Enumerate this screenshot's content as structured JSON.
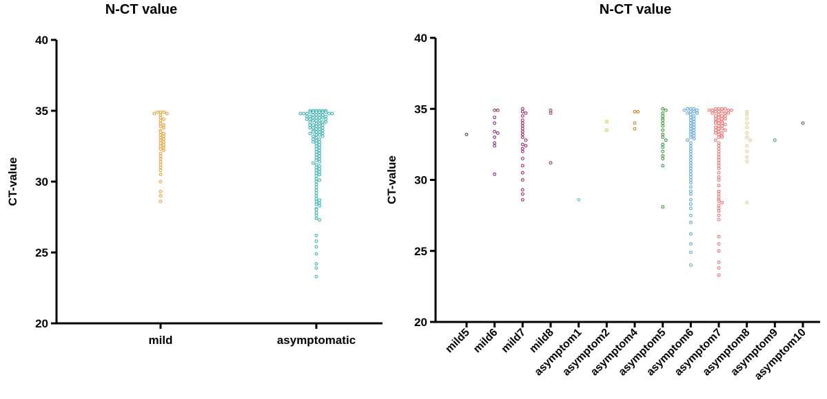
{
  "chart_data": [
    {
      "type": "swarm",
      "title": "N-CT value",
      "ylabel": "CT-value",
      "categories": [
        "mild",
        "asymptomatic"
      ],
      "colors": [
        "#e8a33a",
        "#3fb3b3"
      ],
      "values": [
        [
          34.9,
          34.9,
          34.9,
          34.8,
          34.8,
          34.7,
          34.5,
          34.4,
          34.3,
          34.1,
          34.0,
          33.9,
          33.8,
          33.6,
          33.5,
          33.4,
          33.3,
          33.2,
          33.1,
          33.0,
          32.9,
          32.8,
          32.7,
          32.6,
          32.5,
          32.4,
          32.3,
          32.2,
          32.0,
          31.8,
          31.6,
          31.4,
          31.2,
          31.0,
          30.8,
          30.5,
          30.0,
          29.3,
          29.0,
          28.6
        ],
        [
          35.0,
          35.0,
          35.0,
          35.0,
          35.0,
          35.0,
          34.9,
          34.9,
          34.9,
          34.9,
          34.9,
          34.9,
          34.8,
          34.8,
          34.8,
          34.8,
          34.8,
          34.7,
          34.7,
          34.7,
          34.7,
          34.6,
          34.6,
          34.6,
          34.5,
          34.5,
          34.5,
          34.5,
          34.4,
          34.4,
          34.4,
          34.3,
          34.3,
          34.3,
          34.2,
          34.2,
          34.2,
          34.1,
          34.1,
          34.0,
          34.0,
          34.0,
          33.9,
          33.9,
          33.8,
          33.8,
          33.8,
          33.7,
          33.7,
          33.6,
          33.6,
          33.5,
          33.5,
          33.5,
          33.4,
          33.4,
          33.3,
          33.3,
          33.2,
          33.2,
          33.1,
          33.0,
          33.0,
          32.9,
          32.8,
          32.8,
          32.7,
          32.6,
          32.5,
          32.4,
          32.3,
          32.2,
          32.1,
          32.0,
          31.9,
          31.8,
          31.7,
          31.6,
          31.5,
          31.4,
          31.3,
          31.2,
          31.1,
          31.0,
          30.9,
          30.8,
          30.7,
          30.6,
          30.5,
          30.4,
          30.2,
          30.1,
          30.0,
          29.8,
          29.6,
          29.4,
          29.2,
          29.0,
          28.8,
          28.7,
          28.6,
          28.5,
          28.4,
          28.3,
          28.1,
          28.0,
          27.8,
          27.6,
          27.4,
          27.3,
          26.2,
          25.8,
          25.4,
          24.9,
          24.2,
          23.9,
          23.3
        ]
      ],
      "ylim": [
        20,
        40
      ],
      "yticks": [
        20,
        25,
        30,
        35,
        40
      ]
    },
    {
      "type": "swarm",
      "title": "N-CT value",
      "ylabel": "CT-value",
      "categories": [
        "mild5",
        "mild6",
        "mild7",
        "mild8",
        "asymptom1",
        "asymptom2",
        "asymptom4",
        "asymptom5",
        "asymptom6",
        "asymptom7",
        "asymptom8",
        "asymptom9",
        "asymptom10"
      ],
      "colors": [
        "#4a3c70",
        "#8b2d7a",
        "#9b2a6e",
        "#a03070",
        "#5bc0c8",
        "#d8c840",
        "#c0803a",
        "#3a9a3a",
        "#5fa8e0",
        "#f07070",
        "#e8c890",
        "#3aa890",
        "#505a80"
      ],
      "values": [
        [
          33.2
        ],
        [
          34.9,
          34.9,
          34.4,
          34.0,
          33.4,
          33.3,
          33.0,
          32.6,
          32.4,
          30.4
        ],
        [
          35.0,
          34.8,
          34.7,
          34.5,
          34.2,
          34.0,
          33.8,
          33.6,
          33.4,
          33.2,
          33.0,
          32.8,
          32.5,
          32.4,
          32.2,
          32.0,
          31.5,
          31.0,
          30.5,
          30.0,
          29.3,
          29.0,
          28.6
        ],
        [
          34.9,
          34.7,
          31.2
        ],
        [
          28.6
        ],
        [
          34.1,
          33.5
        ],
        [
          34.8,
          34.8,
          34.0,
          33.6
        ],
        [
          35.0,
          34.9,
          34.7,
          34.5,
          34.3,
          34.2,
          34.0,
          33.8,
          33.5,
          33.2,
          33.0,
          32.8,
          32.5,
          32.3,
          32.0,
          31.7,
          31.5,
          31.0,
          28.1
        ],
        [
          35.0,
          35.0,
          35.0,
          34.9,
          34.9,
          34.8,
          34.8,
          34.7,
          34.7,
          34.6,
          34.5,
          34.4,
          34.3,
          34.2,
          34.1,
          34.0,
          33.9,
          33.8,
          33.7,
          33.6,
          33.5,
          33.4,
          33.3,
          33.2,
          33.1,
          33.0,
          32.9,
          32.8,
          32.6,
          32.4,
          32.2,
          32.0,
          31.8,
          31.6,
          31.4,
          31.2,
          31.0,
          30.8,
          30.6,
          30.4,
          30.2,
          30.0,
          29.8,
          29.5,
          29.2,
          29.0,
          28.6,
          28.3,
          28.0,
          27.5,
          27.0,
          26.2,
          25.5,
          24.9,
          24.0
        ],
        [
          35.0,
          35.0,
          35.0,
          35.0,
          34.9,
          34.9,
          34.9,
          34.9,
          34.8,
          34.8,
          34.8,
          34.7,
          34.7,
          34.7,
          34.6,
          34.5,
          34.5,
          34.5,
          34.4,
          34.3,
          34.3,
          34.3,
          34.2,
          34.1,
          34.1,
          34.0,
          34.0,
          34.0,
          33.9,
          33.8,
          33.8,
          33.7,
          33.6,
          33.6,
          33.5,
          33.5,
          33.4,
          33.3,
          33.3,
          33.2,
          33.1,
          33.0,
          33.0,
          32.8,
          32.6,
          32.4,
          32.2,
          32.0,
          31.8,
          31.6,
          31.4,
          31.2,
          31.0,
          30.8,
          30.5,
          30.2,
          30.0,
          29.6,
          29.2,
          29.0,
          28.8,
          28.6,
          28.5,
          28.4,
          28.2,
          28.0,
          27.8,
          27.5,
          27.2,
          26.0,
          25.5,
          25.0,
          24.2,
          23.8,
          23.3
        ],
        [
          34.8,
          34.6,
          34.3,
          34.0,
          33.7,
          33.3,
          33.0,
          32.8,
          32.4,
          32.0,
          31.6,
          31.3,
          28.4
        ],
        [
          32.8
        ],
        [
          34.0
        ]
      ],
      "ylim": [
        20,
        40
      ],
      "yticks": [
        20,
        25,
        30,
        35,
        40
      ]
    }
  ]
}
